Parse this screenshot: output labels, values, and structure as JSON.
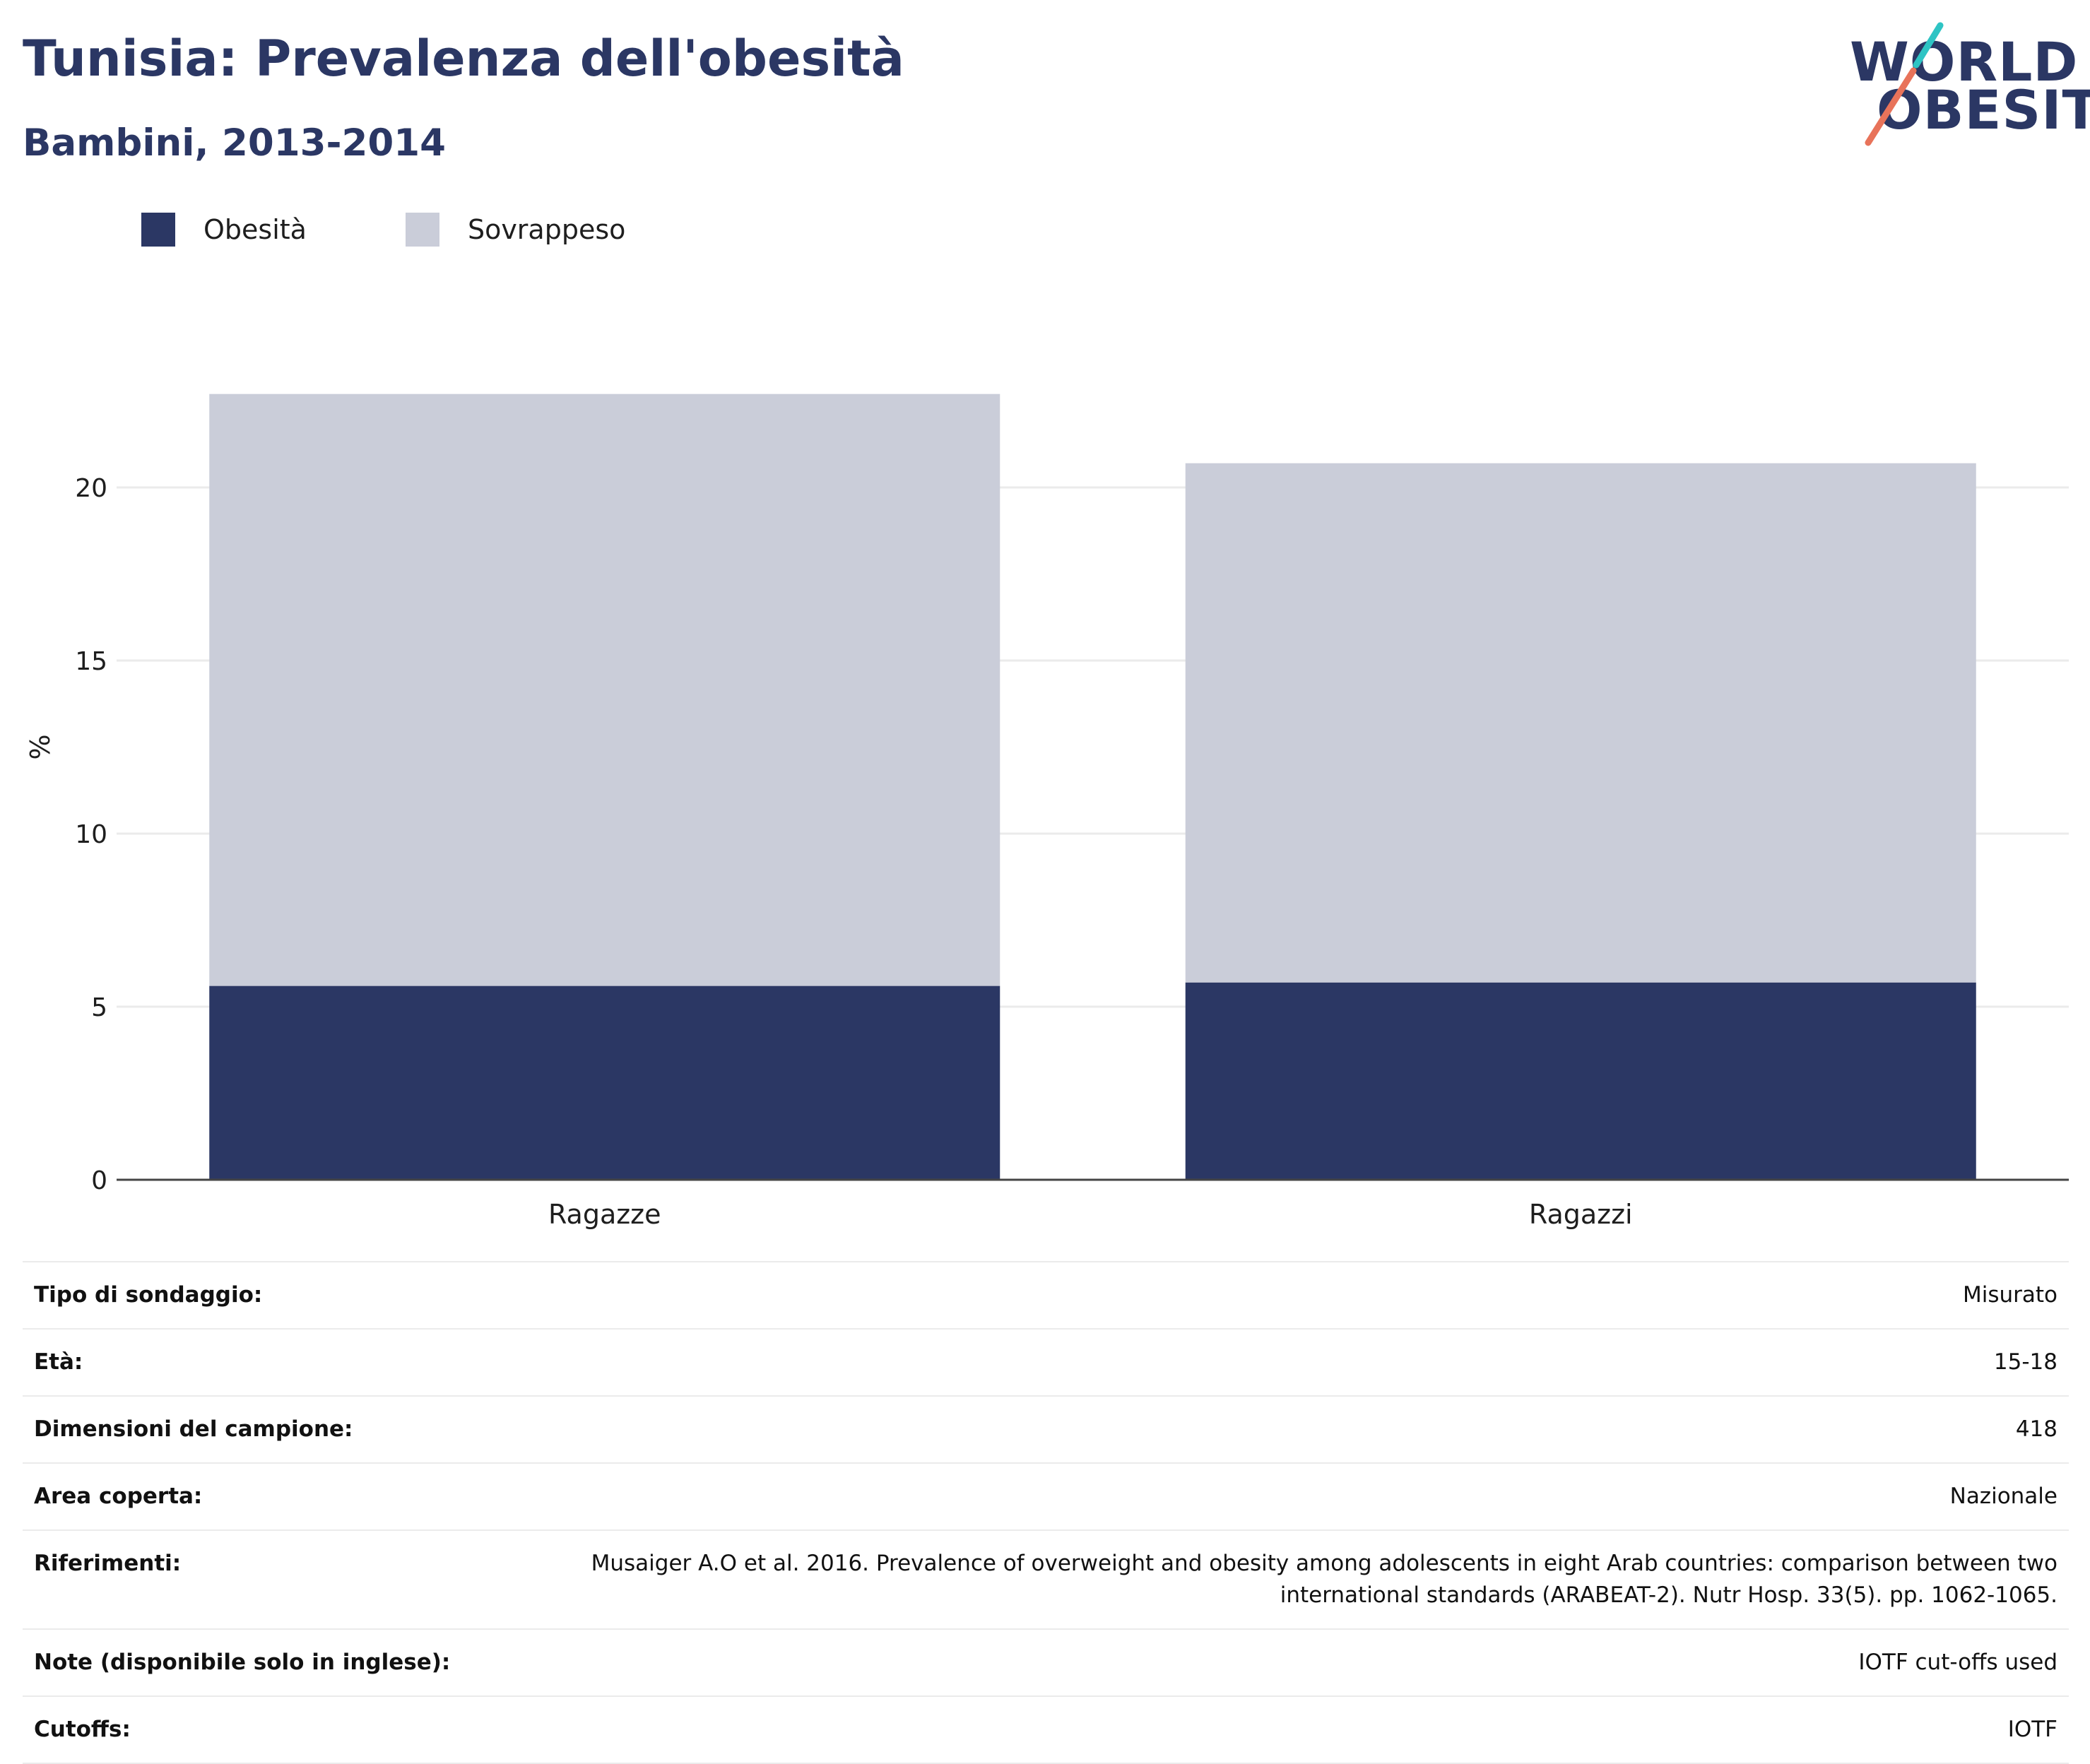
{
  "header": {
    "title": "Tunisia: Prevalenza dell'obesità",
    "subtitle": "Bambini, 2013-2014"
  },
  "logo": {
    "line1": "WORLD",
    "line2": "OBESITY",
    "colors": [
      "#2b3764",
      "#2ec4c4",
      "#e8735a"
    ]
  },
  "legend": {
    "items": [
      {
        "label": "Obesità",
        "color": "#2b3764"
      },
      {
        "label": "Sovrappeso",
        "color": "#cacdd9"
      }
    ]
  },
  "chart_data": {
    "type": "bar",
    "stacked": true,
    "categories": [
      "Ragazze",
      "Ragazzi"
    ],
    "series": [
      {
        "name": "Obesità",
        "values": [
          5.6,
          5.7
        ],
        "color": "#2b3764"
      },
      {
        "name": "Sovrappeso",
        "values": [
          17.1,
          15.0
        ],
        "color": "#cacdd9"
      }
    ],
    "ylabel": "%",
    "ylim": [
      0,
      25
    ],
    "yticks": [
      0,
      5,
      10,
      15,
      20
    ],
    "grid": true,
    "legend_position": "top-left"
  },
  "info": {
    "rows": [
      {
        "label": "Tipo di sondaggio:",
        "value": "Misurato"
      },
      {
        "label": "Età:",
        "value": "15-18"
      },
      {
        "label": "Dimensioni del campione:",
        "value": "418"
      },
      {
        "label": "Area coperta:",
        "value": "Nazionale"
      },
      {
        "label": "Riferimenti:",
        "value": "Musaiger A.O et al. 2016. Prevalence of overweight and obesity among adolescents in eight Arab countries: comparison between two international standards (ARABEAT-2). Nutr Hosp. 33(5). pp. 1062-1065."
      },
      {
        "label": "Note (disponibile solo in inglese):",
        "value": "IOTF cut-offs used"
      },
      {
        "label": "Cutoffs:",
        "value": "IOTF"
      }
    ]
  }
}
